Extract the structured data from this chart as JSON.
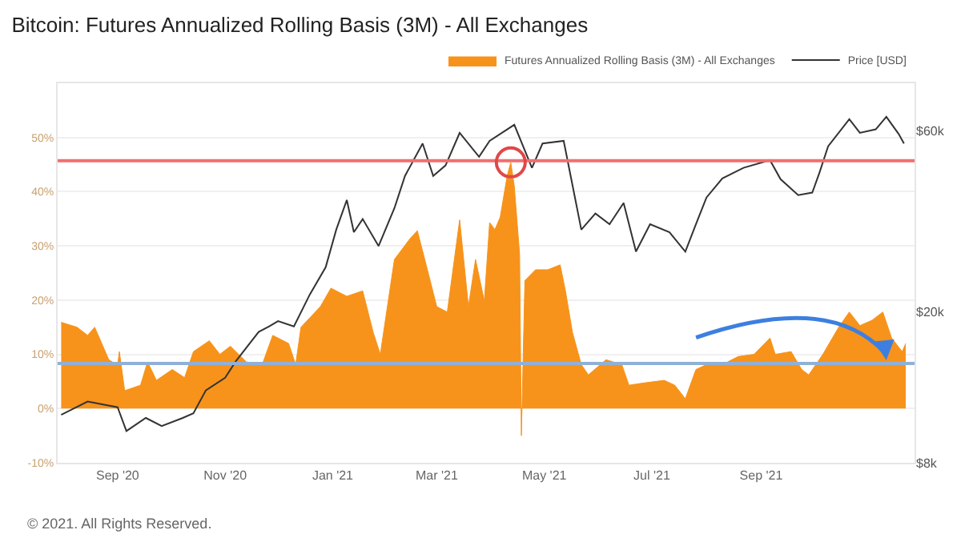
{
  "chart_data": {
    "type": "area",
    "title": "Bitcoin: Futures Annualized Rolling Basis (3M) - All Exchanges",
    "annotations": [
      "© 2021. All Rights Reserved."
    ],
    "xlim": [
      "2020-07-29",
      "2021-11-27"
    ],
    "xticks": [
      {
        "value": "2020-09-01",
        "label": "Sep '20"
      },
      {
        "value": "2020-11-01",
        "label": "Nov '20"
      },
      {
        "value": "2021-01-01",
        "label": "Jan '21"
      },
      {
        "value": "2021-03-01",
        "label": "Mar '21"
      },
      {
        "value": "2021-05-01",
        "label": "May '21"
      },
      {
        "value": "2021-07-01",
        "label": "Jul '21"
      },
      {
        "value": "2021-09-01",
        "label": "Sep '21"
      }
    ],
    "ylim": [
      -10,
      60
    ],
    "yticks": [
      {
        "value": -10,
        "label": "-10%"
      },
      {
        "value": 0,
        "label": "0%"
      },
      {
        "value": 10,
        "label": "10%"
      },
      {
        "value": 20,
        "label": "20%"
      },
      {
        "value": 30,
        "label": "30%"
      },
      {
        "value": 40,
        "label": "40%"
      },
      {
        "value": 50,
        "label": "50%"
      }
    ],
    "y2lim": [
      8000,
      80000
    ],
    "y2ticks": [
      {
        "value": 8000,
        "label": "$8k"
      },
      {
        "value": 20000,
        "label": "$20k"
      },
      {
        "value": 60000,
        "label": "$60k"
      }
    ],
    "log": "y2",
    "grid": "y",
    "legend": "top right",
    "ref_lines": [
      {
        "axis": "y",
        "value": 8.3,
        "color": "#8fb0d8"
      },
      {
        "axis": "y",
        "value": 45.7,
        "color": "#f07070"
      }
    ],
    "series": [
      {
        "name": "Futures Annualized Rolling Basis (3M) - All Exchanges",
        "color": "#f7931a",
        "x": [
          "2020-07-31",
          "2020-08-09",
          "2020-08-15",
          "2020-08-19",
          "2020-08-27",
          "2020-09-01",
          "2020-09-02",
          "2020-09-05",
          "2020-09-14",
          "2020-09-18",
          "2020-09-23",
          "2020-10-02",
          "2020-10-09",
          "2020-10-14",
          "2020-10-23",
          "2020-10-29",
          "2020-11-04",
          "2020-11-13",
          "2020-11-22",
          "2020-11-28",
          "2020-12-07",
          "2020-12-11",
          "2020-12-14",
          "2020-12-25",
          "2020-12-31",
          "2021-01-09",
          "2021-01-18",
          "2021-01-24",
          "2021-01-28",
          "2021-02-05",
          "2021-02-14",
          "2021-02-18",
          "2021-02-23",
          "2021-03-01",
          "2021-03-07",
          "2021-03-14",
          "2021-03-19",
          "2021-03-23",
          "2021-03-28",
          "2021-03-31",
          "2021-04-03",
          "2021-04-06",
          "2021-04-10",
          "2021-04-12",
          "2021-04-14",
          "2021-04-17",
          "2021-04-18",
          "2021-04-20",
          "2021-04-26",
          "2021-05-03",
          "2021-05-10",
          "2021-05-13",
          "2021-05-17",
          "2021-05-22",
          "2021-05-26",
          "2021-06-05",
          "2021-06-14",
          "2021-06-18",
          "2021-06-26",
          "2021-07-08",
          "2021-07-14",
          "2021-07-20",
          "2021-07-26",
          "2021-08-01",
          "2021-08-10",
          "2021-08-19",
          "2021-08-28",
          "2021-09-06",
          "2021-09-09",
          "2021-09-18",
          "2021-09-24",
          "2021-09-28",
          "2021-10-06",
          "2021-10-15",
          "2021-10-21",
          "2021-10-27",
          "2021-11-03",
          "2021-11-09",
          "2021-11-14",
          "2021-11-20",
          "2021-11-22"
        ],
        "values": [
          15.9,
          15,
          13.5,
          15,
          9,
          8,
          10.5,
          3.3,
          4.3,
          8.6,
          5.2,
          7.2,
          5.7,
          10.5,
          12.5,
          10,
          11.5,
          8.6,
          8.1,
          13.5,
          12,
          8.1,
          15,
          18.8,
          22.2,
          20.7,
          21.7,
          14,
          10,
          27.5,
          31.4,
          32.8,
          26.5,
          18.8,
          17.8,
          34.8,
          18.8,
          27.5,
          19.8,
          34.3,
          33,
          35.3,
          43,
          45.4,
          41,
          28.5,
          -5,
          23.6,
          25.6,
          25.6,
          26.5,
          21.7,
          14,
          8.1,
          6.2,
          9,
          8.1,
          4.3,
          4.7,
          5.2,
          4.3,
          1.8,
          7.2,
          8.1,
          8.1,
          9.6,
          10,
          13,
          10,
          10.5,
          7.2,
          6.2,
          10,
          15,
          17.8,
          15.3,
          16.3,
          17.8,
          13,
          10.5,
          12
        ]
      },
      {
        "name": "Price [USD]",
        "type": "line",
        "axis": "y2",
        "color": "#333333",
        "x": [
          "2020-07-31",
          "2020-08-15",
          "2020-09-01",
          "2020-09-06",
          "2020-09-17",
          "2020-09-26",
          "2020-10-08",
          "2020-10-14",
          "2020-10-21",
          "2020-11-01",
          "2020-11-07",
          "2020-11-20",
          "2020-11-26",
          "2020-12-01",
          "2020-12-10",
          "2020-12-19",
          "2020-12-28",
          "2021-01-03",
          "2021-01-09",
          "2021-01-13",
          "2021-01-18",
          "2021-01-27",
          "2021-02-05",
          "2021-02-11",
          "2021-02-21",
          "2021-02-27",
          "2021-03-06",
          "2021-03-14",
          "2021-03-25",
          "2021-03-31",
          "2021-04-14",
          "2021-04-24",
          "2021-04-30",
          "2021-05-12",
          "2021-05-19",
          "2021-05-22",
          "2021-05-30",
          "2021-06-07",
          "2021-06-15",
          "2021-06-22",
          "2021-06-30",
          "2021-07-11",
          "2021-07-20",
          "2021-07-26",
          "2021-08-01",
          "2021-08-10",
          "2021-08-22",
          "2021-09-06",
          "2021-09-12",
          "2021-09-22",
          "2021-09-30",
          "2021-10-04",
          "2021-10-09",
          "2021-10-21",
          "2021-10-27",
          "2021-11-05",
          "2021-11-11",
          "2021-11-18",
          "2021-11-21"
        ],
        "values": [
          10700,
          11600,
          11200,
          9700,
          10500,
          10000,
          10500,
          10800,
          12400,
          13400,
          14800,
          17700,
          18300,
          18900,
          18300,
          22200,
          26200,
          32900,
          39400,
          32400,
          35100,
          29800,
          37500,
          45600,
          55500,
          45600,
          48600,
          59200,
          51200,
          56400,
          62200,
          47900,
          55500,
          56400,
          38700,
          32900,
          36300,
          34000,
          38700,
          28800,
          34000,
          32400,
          28800,
          34000,
          40000,
          44900,
          47900,
          50200,
          44700,
          40600,
          41200,
          46400,
          54600,
          64300,
          59200,
          60500,
          65300,
          58800,
          55500
        ]
      }
    ]
  }
}
